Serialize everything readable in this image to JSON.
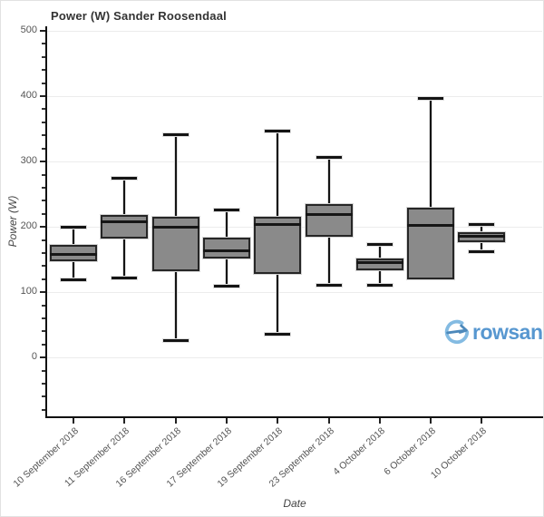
{
  "title": "Power (W)  Sander Roosendaal",
  "watermark": {
    "text": "rowsan",
    "color": "#3a86c8",
    "icon": "circle-swoosh-arrow"
  },
  "chart_data": {
    "type": "box",
    "title": "Power (W)  Sander Roosendaal",
    "xlabel": "Date",
    "ylabel": "Power (W)",
    "ylim": [
      -90,
      507
    ],
    "y_major_ticks": [
      0,
      100,
      200,
      300,
      400,
      500
    ],
    "y_minor_step": 20,
    "grid": "horizontal-major-only",
    "legend": "none",
    "categories": [
      "10 September 2018",
      "11 September 2018",
      "16 September 2018",
      "17 September 2018",
      "19 September 2018",
      "23 September 2018",
      "4 October 2018",
      "6 October 2018",
      "10 October 2018"
    ],
    "series": [
      {
        "category": "10 September 2018",
        "whisker_low": 120,
        "q1": 147,
        "median": 159,
        "q3": 172,
        "whisker_high": 200
      },
      {
        "category": "11 September 2018",
        "whisker_low": 123,
        "q1": 182,
        "median": 208,
        "q3": 218,
        "whisker_high": 275
      },
      {
        "category": "16 September 2018",
        "whisker_low": 27,
        "q1": 132,
        "median": 200,
        "q3": 216,
        "whisker_high": 342
      },
      {
        "category": "17 September 2018",
        "whisker_low": 110,
        "q1": 152,
        "median": 164,
        "q3": 184,
        "whisker_high": 227
      },
      {
        "category": "19 September 2018",
        "whisker_low": 36,
        "q1": 128,
        "median": 204,
        "q3": 215,
        "whisker_high": 348
      },
      {
        "category": "23 September 2018",
        "whisker_low": 112,
        "q1": 185,
        "median": 220,
        "q3": 235,
        "whisker_high": 307
      },
      {
        "category": "4 October 2018",
        "whisker_low": 112,
        "q1": 133,
        "median": 146,
        "q3": 152,
        "whisker_high": 174
      },
      {
        "category": "6 October 2018",
        "whisker_low": 120,
        "q1": 120,
        "median": 203,
        "q3": 229,
        "whisker_high": 397
      },
      {
        "category": "10 October 2018",
        "whisker_low": 162,
        "q1": 176,
        "median": 186,
        "q3": 192,
        "whisker_high": 205
      }
    ],
    "colors": {
      "box_fill": "#8a8a8a",
      "box_border": "#262626",
      "median": "#161616",
      "whisker": "#141414",
      "halo": "#dedede",
      "grid": "#ececec",
      "axis": "#111111",
      "tick_label": "#555555",
      "title": "#333333"
    }
  }
}
